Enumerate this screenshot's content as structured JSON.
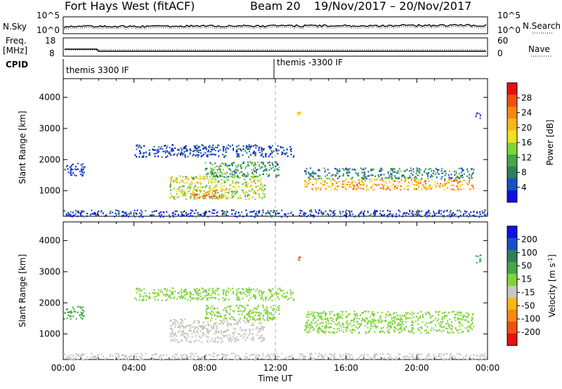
{
  "header": {
    "station": "Fort Hays West (fitACF)",
    "beam": "Beam 20",
    "date_range": "19/Nov/2017 – 20/Nov/2017"
  },
  "labels": {
    "nsky": "N.Sky",
    "freq": "Freq.",
    "mhz": "[MHz]",
    "cpid": "CPID",
    "nsearch": "N.Search",
    "nave": "Nave"
  },
  "noise_panel": {
    "left_ticks": [
      "10^5",
      "10^0"
    ],
    "right_ticks": [
      "10^5",
      "10^0"
    ]
  },
  "freq_panel": {
    "left_ticks": [
      "18",
      "8"
    ],
    "right_ticks": [
      "60",
      "0"
    ],
    "freq_mhz": 10.5,
    "nave": 30
  },
  "cpid_panel": {
    "segments": [
      {
        "label": "themis 3300 IF",
        "start_hour": 0
      },
      {
        "label": "themis -3300 IF",
        "start_hour": 12
      }
    ]
  },
  "chart_data": [
    {
      "type": "heatmap",
      "name": "power",
      "xlabel": "",
      "ylabel": "Slant Range [km]",
      "xlim": [
        0,
        24
      ],
      "ylim": [
        180,
        4600
      ],
      "yticks": [
        1000,
        2000,
        3000,
        4000
      ],
      "colorbar": {
        "label": "Power [dB]",
        "range": [
          0,
          32
        ],
        "ticks": [
          4,
          8,
          12,
          16,
          20,
          24,
          28
        ],
        "colors": [
          "#1010e0",
          "#1850c8",
          "#2e7f5c",
          "#43a845",
          "#7fd43a",
          "#f0e020",
          "#f8b818",
          "#f88810",
          "#f05010",
          "#e81010"
        ]
      },
      "regions": [
        {
          "t0": 6.0,
          "t1": 11.4,
          "r0": 750,
          "r1": 1500,
          "value": 16
        },
        {
          "t0": 7.2,
          "t1": 9.0,
          "r0": 780,
          "r1": 1050,
          "value": 24
        },
        {
          "t0": 8.0,
          "t1": 12.2,
          "r0": 1450,
          "r1": 1950,
          "value": 10
        },
        {
          "t0": 13.6,
          "t1": 23.2,
          "r0": 1050,
          "r1": 1400,
          "value": 22
        },
        {
          "t0": 13.6,
          "t1": 23.2,
          "r0": 1400,
          "r1": 1750,
          "value": 8
        },
        {
          "t0": 4.0,
          "t1": 13.0,
          "r0": 2100,
          "r1": 2500,
          "value": 4
        },
        {
          "t0": 0.0,
          "t1": 1.2,
          "r0": 1500,
          "r1": 1900,
          "value": 4
        },
        {
          "t0": 0.0,
          "t1": 24.0,
          "r0": 180,
          "r1": 400,
          "value": 4
        },
        {
          "t0": 13.2,
          "t1": 13.4,
          "r0": 3450,
          "r1": 3550,
          "value": 20
        },
        {
          "t0": 23.3,
          "t1": 23.6,
          "r0": 3300,
          "r1": 3600,
          "value": 4
        }
      ]
    },
    {
      "type": "heatmap",
      "name": "velocity",
      "xlabel": "Time UT",
      "ylabel": "Slant Range [km]",
      "xlim": [
        0,
        24
      ],
      "ylim": [
        180,
        4600
      ],
      "xticks": [
        "00:00",
        "04:00",
        "08:00",
        "12:00",
        "16:00",
        "20:00",
        "00:00"
      ],
      "yticks": [
        1000,
        2000,
        3000,
        4000
      ],
      "colorbar": {
        "label": "Velocity [m s^-1]",
        "ticks": [
          "200",
          "100",
          "50",
          "15",
          "-15",
          "-50",
          "-100",
          "-200"
        ],
        "colors": [
          "#1010e0",
          "#1850c8",
          "#2e7f5c",
          "#43a845",
          "#7fd43a",
          "#c8c8c0",
          "#f8b818",
          "#f88810",
          "#f05010",
          "#e81010"
        ]
      },
      "regions": [
        {
          "t0": 6.0,
          "t1": 11.4,
          "r0": 750,
          "r1": 1500,
          "value": -30
        },
        {
          "t0": 8.0,
          "t1": 12.2,
          "r0": 1450,
          "r1": 1950,
          "value": 0
        },
        {
          "t0": 13.6,
          "t1": 23.2,
          "r0": 1050,
          "r1": 1750,
          "value": 0
        },
        {
          "t0": 4.0,
          "t1": 13.0,
          "r0": 2100,
          "r1": 2500,
          "value": 0
        },
        {
          "t0": 0.0,
          "t1": 1.2,
          "r0": 1500,
          "r1": 1900,
          "value": 30
        },
        {
          "t0": 0.0,
          "t1": 24.0,
          "r0": 180,
          "r1": 400,
          "value": -30
        },
        {
          "t0": 13.2,
          "t1": 13.4,
          "r0": 3350,
          "r1": 3550,
          "value": -200
        },
        {
          "t0": 23.3,
          "t1": 23.6,
          "r0": 3300,
          "r1": 3600,
          "value": 30
        }
      ]
    }
  ]
}
